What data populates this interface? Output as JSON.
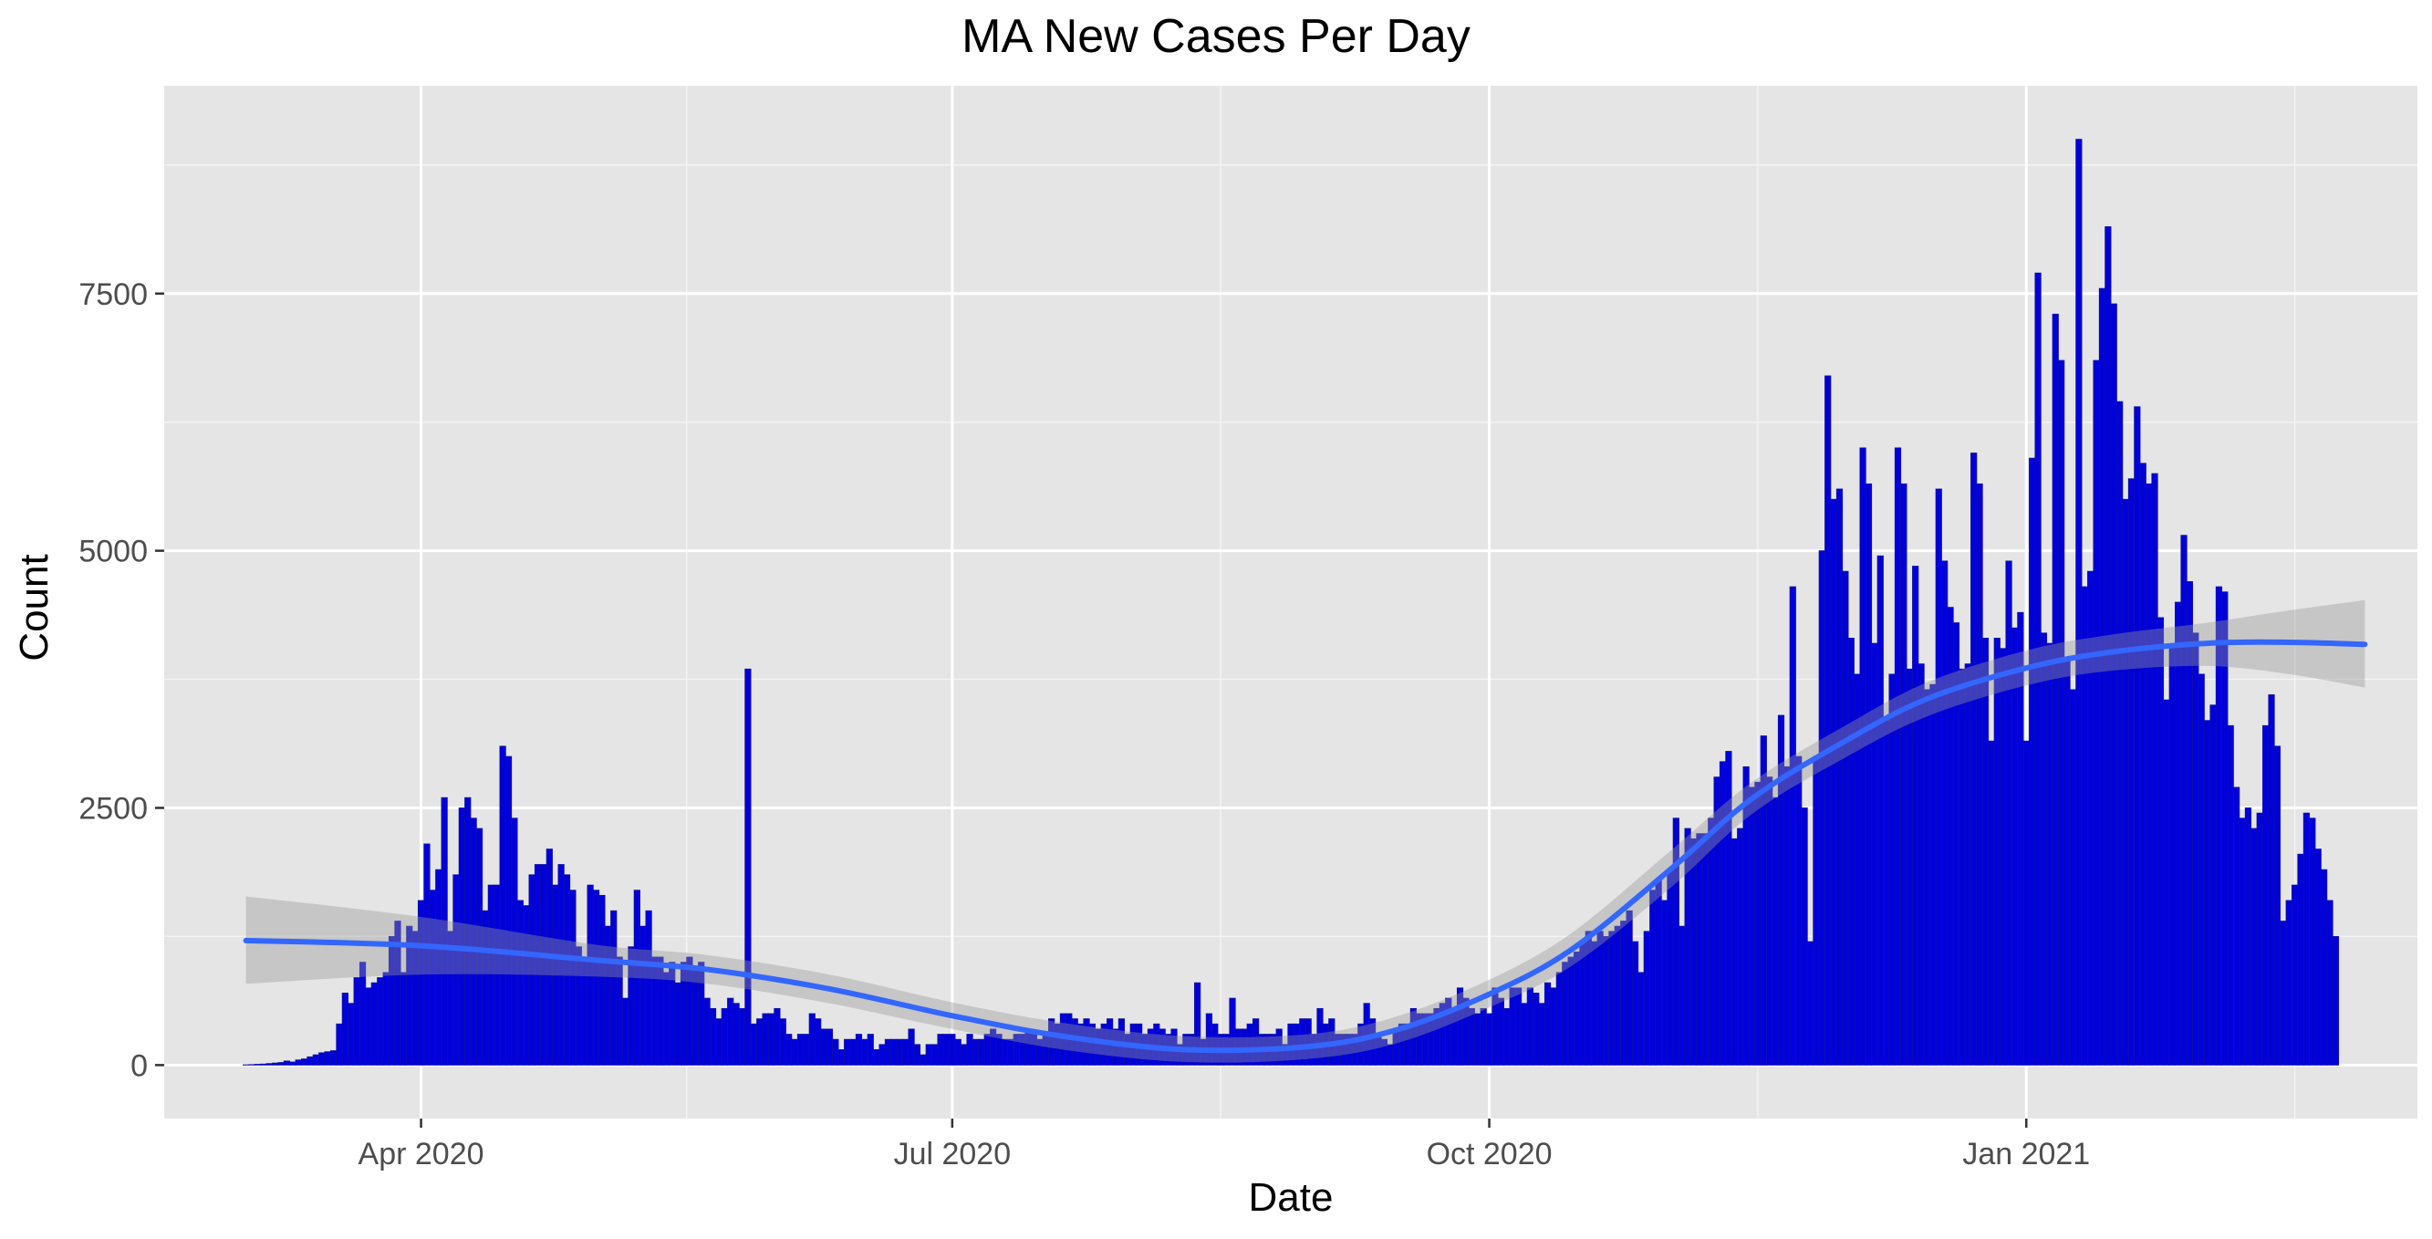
{
  "chart_data": {
    "type": "bar",
    "title": "MA New Cases Per Day",
    "xlabel": "Date",
    "ylabel": "Count",
    "x_start": "2020-03-02",
    "x_end": "2021-02-28",
    "x_domain": [
      "2020-02-17",
      "2021-03-09"
    ],
    "xticks": [
      {
        "date": "2020-04-01",
        "label": "Apr 2020"
      },
      {
        "date": "2020-07-01",
        "label": "Jul 2020"
      },
      {
        "date": "2020-10-01",
        "label": "Oct 2020"
      },
      {
        "date": "2021-01-01",
        "label": "Jan 2021"
      }
    ],
    "yticks": [
      0,
      2500,
      5000,
      7500
    ],
    "ylim": [
      -520,
      9520
    ],
    "grid": true,
    "bar_color": "#0000dd",
    "trend_color": "#3366ff",
    "band_color": "#999999",
    "series": [
      {
        "values": [
          3,
          5,
          8,
          10,
          15,
          20,
          25,
          40,
          30,
          50,
          60,
          80,
          100,
          120,
          130,
          140,
          400,
          700,
          600,
          850,
          1000,
          750,
          800,
          850,
          900,
          1250,
          1400,
          900,
          1350,
          1300,
          1600,
          2150,
          1700,
          1900,
          2600,
          1300,
          1850,
          2500,
          2600,
          2400,
          2300,
          1500,
          1750,
          1750,
          3100,
          3000,
          2400,
          1600,
          1550,
          1850,
          1950,
          1950,
          2100,
          1750,
          1950,
          1850,
          1700,
          1150,
          1050,
          1750,
          1700,
          1650,
          1350,
          1500,
          1050,
          650,
          1150,
          1700,
          1350,
          1500,
          1050,
          1050,
          900,
          1000,
          800,
          1000,
          1050,
          950,
          1000,
          650,
          550,
          450,
          550,
          650,
          600,
          550,
          3850,
          400,
          450,
          500,
          500,
          550,
          450,
          300,
          250,
          300,
          300,
          500,
          450,
          350,
          350,
          250,
          150,
          250,
          250,
          300,
          250,
          300,
          150,
          200,
          250,
          250,
          250,
          250,
          350,
          200,
          100,
          200,
          200,
          300,
          300,
          300,
          250,
          200,
          300,
          250,
          250,
          300,
          350,
          300,
          250,
          250,
          300,
          300,
          350,
          300,
          250,
          300,
          450,
          400,
          500,
          500,
          450,
          400,
          450,
          400,
          350,
          400,
          450,
          350,
          450,
          300,
          400,
          400,
          300,
          350,
          400,
          350,
          300,
          350,
          200,
          300,
          300,
          800,
          250,
          500,
          400,
          300,
          300,
          650,
          350,
          350,
          400,
          450,
          300,
          300,
          300,
          350,
          200,
          400,
          400,
          450,
          450,
          300,
          550,
          400,
          450,
          300,
          300,
          300,
          300,
          400,
          600,
          450,
          300,
          250,
          200,
          350,
          400,
          400,
          550,
          500,
          500,
          500,
          550,
          600,
          650,
          550,
          750,
          650,
          550,
          500,
          550,
          500,
          750,
          650,
          550,
          750,
          750,
          600,
          750,
          700,
          600,
          800,
          750,
          900,
          1000,
          1050,
          1100,
          1200,
          1300,
          1200,
          1300,
          1250,
          1300,
          1350,
          1400,
          1500,
          1200,
          900,
          1300,
          1700,
          1800,
          1600,
          1900,
          2400,
          1350,
          2300,
          2200,
          2250,
          2250,
          2400,
          2800,
          2950,
          3050,
          2200,
          2300,
          2900,
          2700,
          2750,
          3200,
          2800,
          2600,
          3400,
          2900,
          4650,
          3000,
          2500,
          1200,
          3000,
          5000,
          6700,
          5500,
          5600,
          4800,
          4150,
          3800,
          6000,
          5650,
          4100,
          4950,
          3350,
          3800,
          6000,
          5650,
          3850,
          4850,
          3900,
          3650,
          3700,
          5600,
          4900,
          4450,
          4300,
          3850,
          3900,
          5950,
          5650,
          4150,
          3150,
          4150,
          4050,
          4900,
          4250,
          4400,
          3150,
          5900,
          7700,
          4200,
          4100,
          7300,
          6850,
          3950,
          3650,
          9000,
          4650,
          4800,
          6850,
          7550,
          8150,
          7400,
          6450,
          5500,
          5700,
          6400,
          5850,
          5650,
          5750,
          4350,
          3550,
          4050,
          4500,
          5150,
          4700,
          4200,
          3800,
          3350,
          3500,
          4650,
          4600,
          3300,
          2700,
          2400,
          2500,
          2300,
          2450,
          3300,
          3600,
          3100,
          1400,
          1600,
          1750,
          2050,
          2450,
          2400,
          2100,
          1900,
          1600,
          1250
        ]
      }
    ],
    "trend": {
      "name": "loess smooth",
      "points": [
        {
          "date": "2020-03-02",
          "y": 1210,
          "lo": 790,
          "hi": 1640
        },
        {
          "date": "2020-04-01",
          "y": 1160,
          "lo": 880,
          "hi": 1440
        },
        {
          "date": "2020-05-01",
          "y": 1020,
          "lo": 860,
          "hi": 1170
        },
        {
          "date": "2020-05-20",
          "y": 930,
          "lo": 790,
          "hi": 1070
        },
        {
          "date": "2020-06-10",
          "y": 740,
          "lo": 600,
          "hi": 880
        },
        {
          "date": "2020-07-01",
          "y": 480,
          "lo": 350,
          "hi": 610
        },
        {
          "date": "2020-07-20",
          "y": 280,
          "lo": 150,
          "hi": 410
        },
        {
          "date": "2020-08-10",
          "y": 150,
          "lo": 30,
          "hi": 280
        },
        {
          "date": "2020-08-31",
          "y": 180,
          "lo": 60,
          "hi": 300
        },
        {
          "date": "2020-09-15",
          "y": 340,
          "lo": 210,
          "hi": 470
        },
        {
          "date": "2020-10-01",
          "y": 690,
          "lo": 560,
          "hi": 830
        },
        {
          "date": "2020-10-15",
          "y": 1120,
          "lo": 960,
          "hi": 1280
        },
        {
          "date": "2020-11-01",
          "y": 1900,
          "lo": 1720,
          "hi": 2080
        },
        {
          "date": "2020-11-15",
          "y": 2590,
          "lo": 2440,
          "hi": 2750
        },
        {
          "date": "2020-12-01",
          "y": 3150,
          "lo": 2990,
          "hi": 3300
        },
        {
          "date": "2020-12-15",
          "y": 3560,
          "lo": 3390,
          "hi": 3720
        },
        {
          "date": "2021-01-01",
          "y": 3860,
          "lo": 3690,
          "hi": 4030
        },
        {
          "date": "2021-01-15",
          "y": 4010,
          "lo": 3830,
          "hi": 4180
        },
        {
          "date": "2021-02-01",
          "y": 4100,
          "lo": 3880,
          "hi": 4300
        },
        {
          "date": "2021-02-15",
          "y": 4110,
          "lo": 3800,
          "hi": 4420
        },
        {
          "date": "2021-02-28",
          "y": 4090,
          "lo": 3670,
          "hi": 4520
        }
      ]
    }
  }
}
